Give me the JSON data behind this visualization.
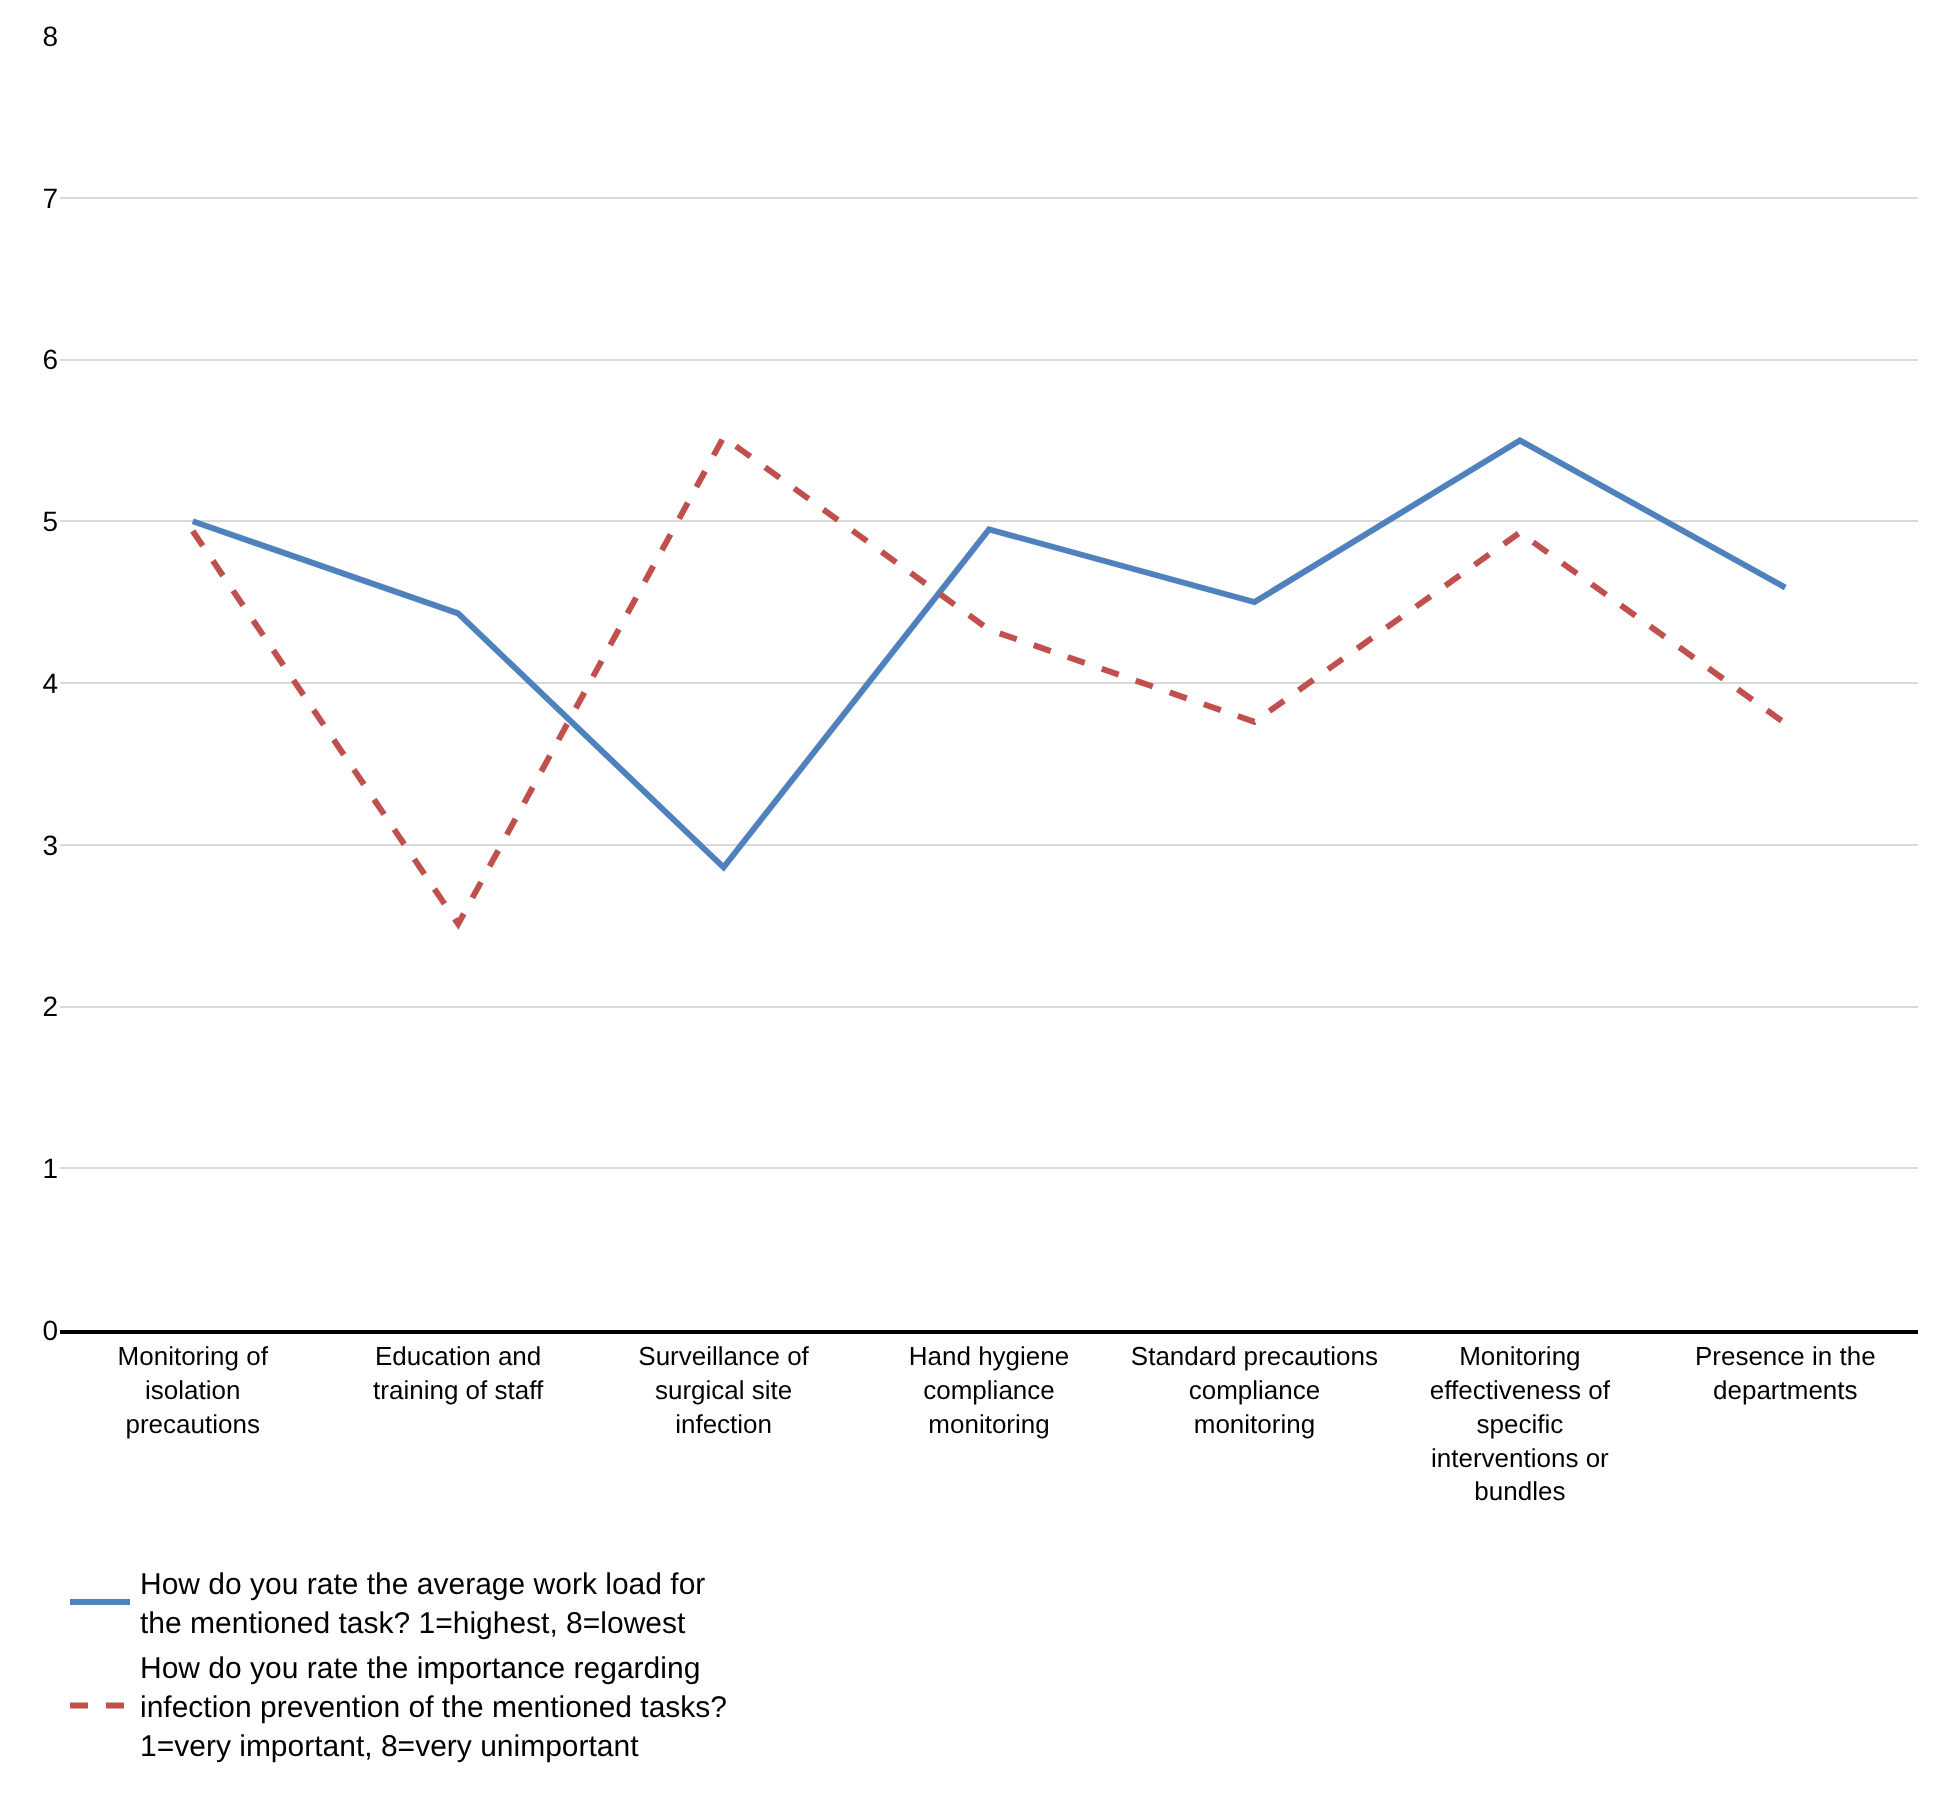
{
  "chart_data": {
    "type": "line",
    "categories": [
      "Monitoring of isolation precautions",
      "Education and training of staff",
      "Surveillance of surgical site infection",
      "Hand hygiene compliance monitoring",
      "Standard precautions compliance monitoring",
      "Monitoring effectiveness of specific interventions or bundles",
      "Presence in the departments"
    ],
    "series": [
      {
        "name": "How do you rate the average work load for the mentioned task? 1=highest, 8=lowest",
        "color": "#4f81bd",
        "line_style": "solid",
        "values": [
          5.0,
          4.43,
          2.86,
          4.95,
          4.5,
          5.5,
          4.59
        ]
      },
      {
        "name": "How do you rate the importance regarding infection prevention of the mentioned tasks? 1=very important, 8=very unimportant",
        "color": "#c0504d",
        "line_style": "dashed",
        "values": [
          4.94,
          2.51,
          5.52,
          4.33,
          3.76,
          4.93,
          3.75
        ]
      }
    ],
    "ylim": [
      0,
      8
    ],
    "yticks": [
      0,
      1,
      2,
      3,
      4,
      5,
      6,
      7,
      8
    ],
    "grid": "y",
    "legend": "bottom",
    "marker": "none"
  }
}
